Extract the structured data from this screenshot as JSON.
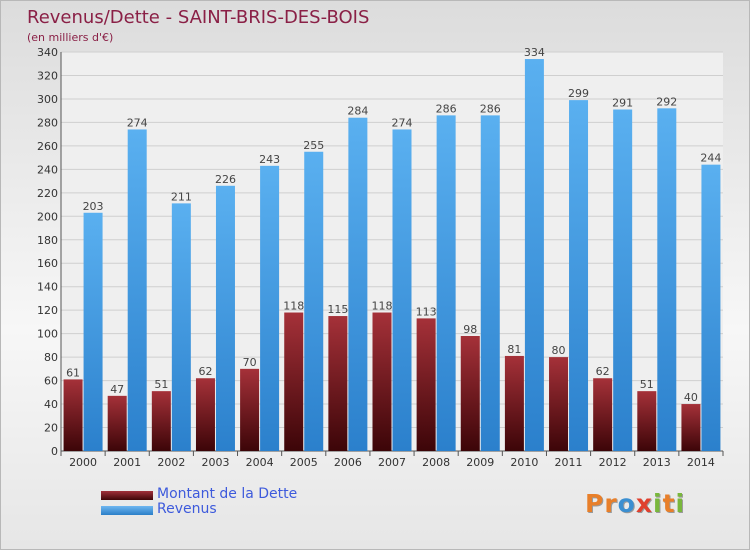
{
  "header": {
    "title": "Revenus/Dette - SAINT-BRIS-DES-BOIS",
    "subtitle": "(en milliers d'€)"
  },
  "legend": {
    "debt_label": "Montant de la Dette",
    "revenue_label": "Revenus"
  },
  "logo": {
    "text": "Proxiti",
    "letters": [
      "P",
      "r",
      "o",
      "x",
      "i",
      "t",
      "i"
    ],
    "letter_colors": [
      "#e87f2a",
      "#e87f2a",
      "#3b8fd1",
      "#e0402e",
      "#79b73c",
      "#e87f2a",
      "#79b73c"
    ]
  },
  "colors": {
    "debt": "#7a1c22",
    "revenue": "#3f9be6",
    "title": "#8a2046",
    "legend_text": "#3d5adc"
  },
  "chart_data": {
    "type": "bar",
    "title": "Revenus/Dette - SAINT-BRIS-DES-BOIS",
    "subtitle": "(en milliers d'€)",
    "categories": [
      "2000",
      "2001",
      "2002",
      "2003",
      "2004",
      "2005",
      "2006",
      "2007",
      "2008",
      "2009",
      "2010",
      "2011",
      "2012",
      "2013",
      "2014"
    ],
    "series": [
      {
        "name": "Montant de la Dette",
        "values": [
          61,
          47,
          51,
          62,
          70,
          118,
          115,
          118,
          113,
          98,
          81,
          80,
          62,
          51,
          40
        ]
      },
      {
        "name": "Revenus",
        "values": [
          203,
          274,
          211,
          226,
          243,
          255,
          284,
          274,
          286,
          286,
          334,
          299,
          291,
          292,
          244
        ]
      }
    ],
    "ylim": [
      0,
      340
    ],
    "ytick_step": 20,
    "grid": true,
    "legend_position": "bottom-left"
  }
}
